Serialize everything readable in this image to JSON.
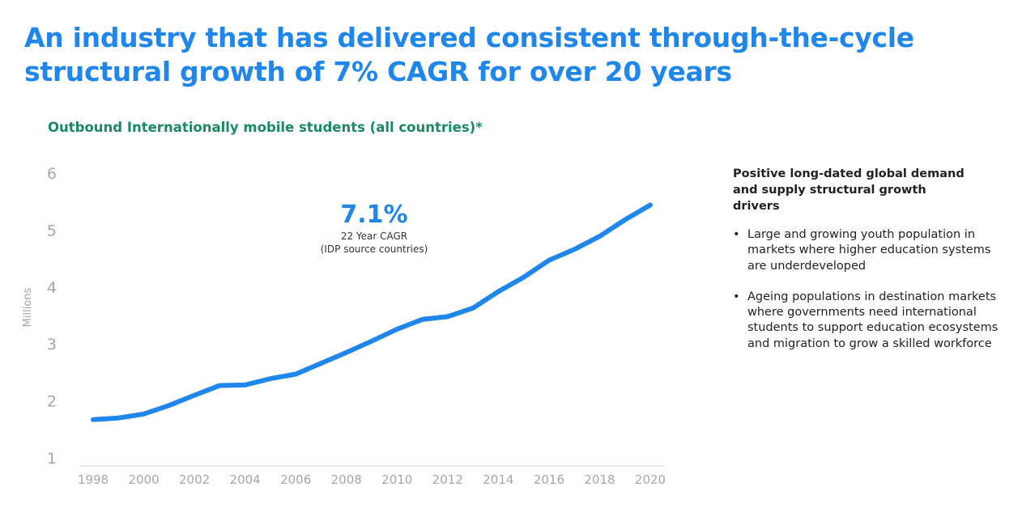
{
  "page": {
    "title": "An industry that has delivered consistent through-the-cycle structural growth of 7% CAGR for over 20 years",
    "chart_title": "Outbound Internationally mobile students (all countries)*"
  },
  "colors": {
    "accent": "#1f86ec",
    "subtitle": "#1a8a62",
    "axis_text": "#a6a6a6",
    "axis_line": "#d9d9d9"
  },
  "callout": {
    "value": "7.1%",
    "label": "22 Year CAGR",
    "note": "(IDP source countries)"
  },
  "drivers": {
    "heading": "Positive long-dated global demand and supply structural growth drivers",
    "bullet_glyph": "•",
    "items": [
      "Large and growing youth population in markets where higher education systems are underdeveloped",
      "Ageing populations in destination markets where governments need international students to support education ecosystems and migration to grow a skilled workforce"
    ]
  },
  "chart_data": {
    "type": "line",
    "title": "Outbound Internationally mobile students (all countries)*",
    "xlabel": "",
    "ylabel": "Millions",
    "x": [
      1998,
      1999,
      2000,
      2001,
      2002,
      2003,
      2004,
      2005,
      2006,
      2007,
      2008,
      2009,
      2010,
      2011,
      2012,
      2013,
      2014,
      2015,
      2016,
      2017,
      2018,
      2019,
      2020
    ],
    "series": [
      {
        "values": [
          1.67,
          1.7,
          1.77,
          1.92,
          2.1,
          2.27,
          2.28,
          2.39,
          2.47,
          2.66,
          2.85,
          3.05,
          3.26,
          3.43,
          3.48,
          3.63,
          3.92,
          4.17,
          4.47,
          4.66,
          4.89,
          5.18,
          5.44
        ]
      }
    ],
    "xticks": [
      1998,
      2000,
      2002,
      2004,
      2006,
      2008,
      2010,
      2012,
      2014,
      2016,
      2018,
      2020
    ],
    "yticks": [
      1,
      2,
      3,
      4,
      5,
      6
    ],
    "ylim": [
      1,
      6
    ],
    "xlim": [
      1998,
      2020
    ],
    "grid": false,
    "legend": "none"
  }
}
